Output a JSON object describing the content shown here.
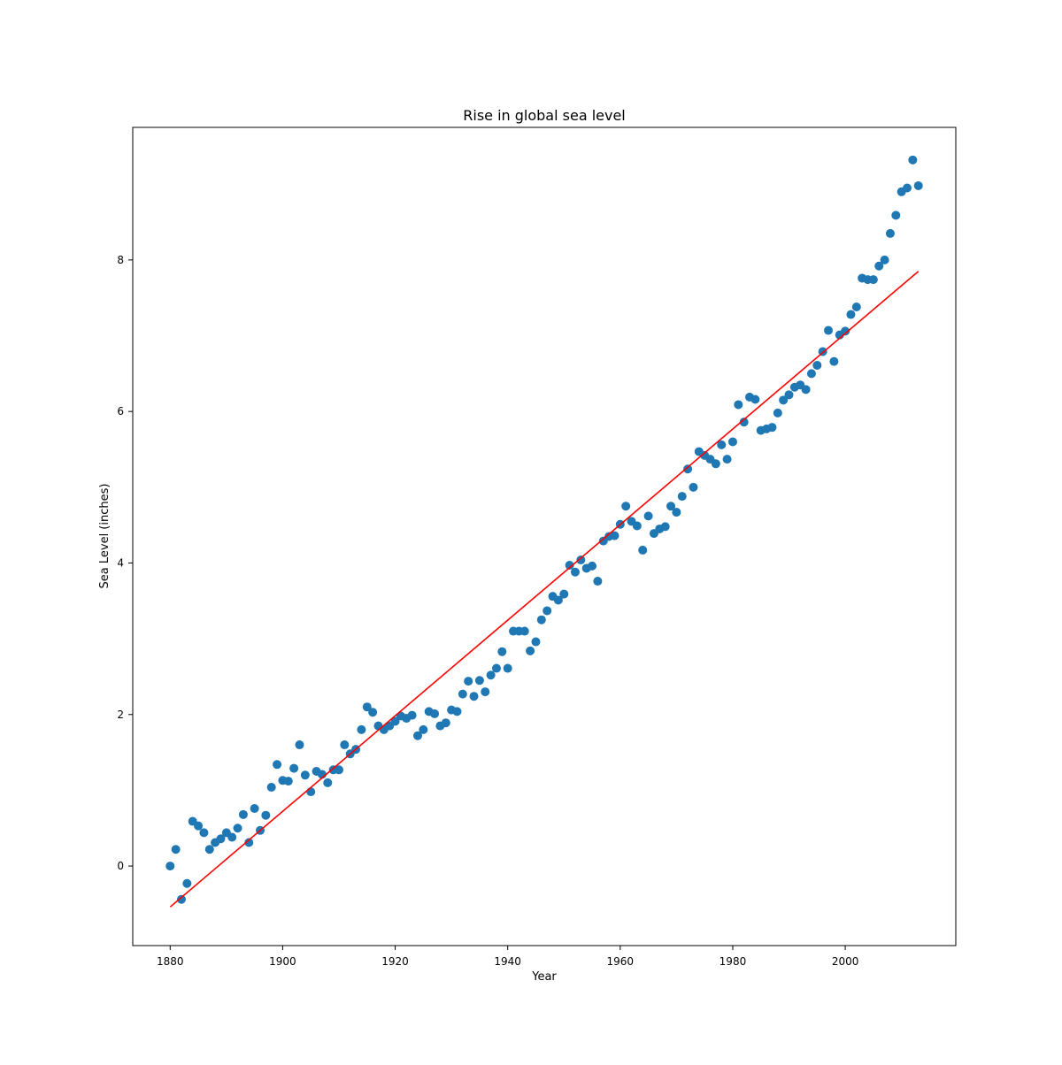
{
  "chart_data": {
    "type": "scatter",
    "title": "Rise in global sea level",
    "xlabel": "Year",
    "ylabel": "Sea Level (inches)",
    "xlim": [
      1873.35,
      2019.65
    ],
    "ylim": [
      -1.05,
      9.75
    ],
    "x_ticks": [
      1880,
      1900,
      1920,
      1940,
      1960,
      1980,
      2000
    ],
    "y_ticks": [
      0,
      2,
      4,
      6,
      8
    ],
    "grid": false,
    "colors": {
      "points": "#1f77b4",
      "fit_line": "#ff0000"
    },
    "series": [
      {
        "kind": "scatter",
        "x": [
          1880,
          1881,
          1882,
          1883,
          1884,
          1885,
          1886,
          1887,
          1888,
          1889,
          1890,
          1891,
          1892,
          1893,
          1894,
          1895,
          1896,
          1897,
          1898,
          1899,
          1900,
          1901,
          1902,
          1903,
          1904,
          1905,
          1906,
          1907,
          1908,
          1909,
          1910,
          1911,
          1912,
          1913,
          1914,
          1915,
          1916,
          1917,
          1918,
          1919,
          1920,
          1921,
          1922,
          1923,
          1924,
          1925,
          1926,
          1927,
          1928,
          1929,
          1930,
          1931,
          1932,
          1933,
          1934,
          1935,
          1936,
          1937,
          1938,
          1939,
          1940,
          1941,
          1942,
          1943,
          1944,
          1945,
          1946,
          1947,
          1948,
          1949,
          1950,
          1951,
          1952,
          1953,
          1954,
          1955,
          1956,
          1957,
          1958,
          1959,
          1960,
          1961,
          1962,
          1963,
          1964,
          1965,
          1966,
          1967,
          1968,
          1969,
          1970,
          1971,
          1972,
          1973,
          1974,
          1975,
          1976,
          1977,
          1978,
          1979,
          1980,
          1981,
          1982,
          1983,
          1984,
          1985,
          1986,
          1987,
          1988,
          1989,
          1990,
          1991,
          1992,
          1993,
          1994,
          1995,
          1996,
          1997,
          1998,
          1999,
          2000,
          2001,
          2002,
          2003,
          2004,
          2005,
          2006,
          2007,
          2008,
          2009,
          2010,
          2011,
          2012,
          2013
        ],
        "y": [
          0.0,
          0.22,
          -0.44,
          -0.23,
          0.59,
          0.53,
          0.44,
          0.22,
          0.31,
          0.36,
          0.44,
          0.38,
          0.5,
          0.68,
          0.31,
          0.76,
          0.47,
          0.67,
          1.04,
          1.34,
          1.13,
          1.12,
          1.29,
          1.6,
          1.2,
          0.98,
          1.25,
          1.21,
          1.1,
          1.27,
          1.27,
          1.6,
          1.48,
          1.54,
          1.8,
          2.1,
          2.03,
          1.85,
          1.8,
          1.85,
          1.91,
          1.98,
          1.95,
          1.99,
          1.72,
          1.8,
          2.04,
          2.01,
          1.85,
          1.89,
          2.06,
          2.04,
          2.27,
          2.44,
          2.24,
          2.45,
          2.3,
          2.52,
          2.61,
          2.83,
          2.61,
          3.1,
          3.1,
          3.1,
          2.84,
          2.96,
          3.25,
          3.37,
          3.56,
          3.51,
          3.59,
          3.97,
          3.88,
          4.04,
          3.93,
          3.96,
          3.76,
          4.29,
          4.35,
          4.36,
          4.51,
          4.75,
          4.55,
          4.49,
          4.17,
          4.62,
          4.39,
          4.45,
          4.48,
          4.75,
          4.67,
          4.88,
          5.24,
          5.0,
          5.47,
          5.42,
          5.37,
          5.31,
          5.56,
          5.37,
          5.6,
          6.09,
          5.86,
          6.19,
          6.16,
          5.75,
          5.77,
          5.79,
          5.98,
          6.15,
          6.22,
          6.32,
          6.35,
          6.29,
          6.5,
          6.61,
          6.79,
          7.07,
          6.66,
          7.01,
          7.06,
          7.28,
          7.38,
          7.76,
          7.74,
          7.74,
          7.92,
          8.0,
          8.35,
          8.59,
          8.9,
          8.95,
          9.32,
          8.98
        ]
      },
      {
        "kind": "line",
        "x": [
          1880,
          2013
        ],
        "y": [
          -0.54,
          7.85
        ]
      }
    ]
  }
}
